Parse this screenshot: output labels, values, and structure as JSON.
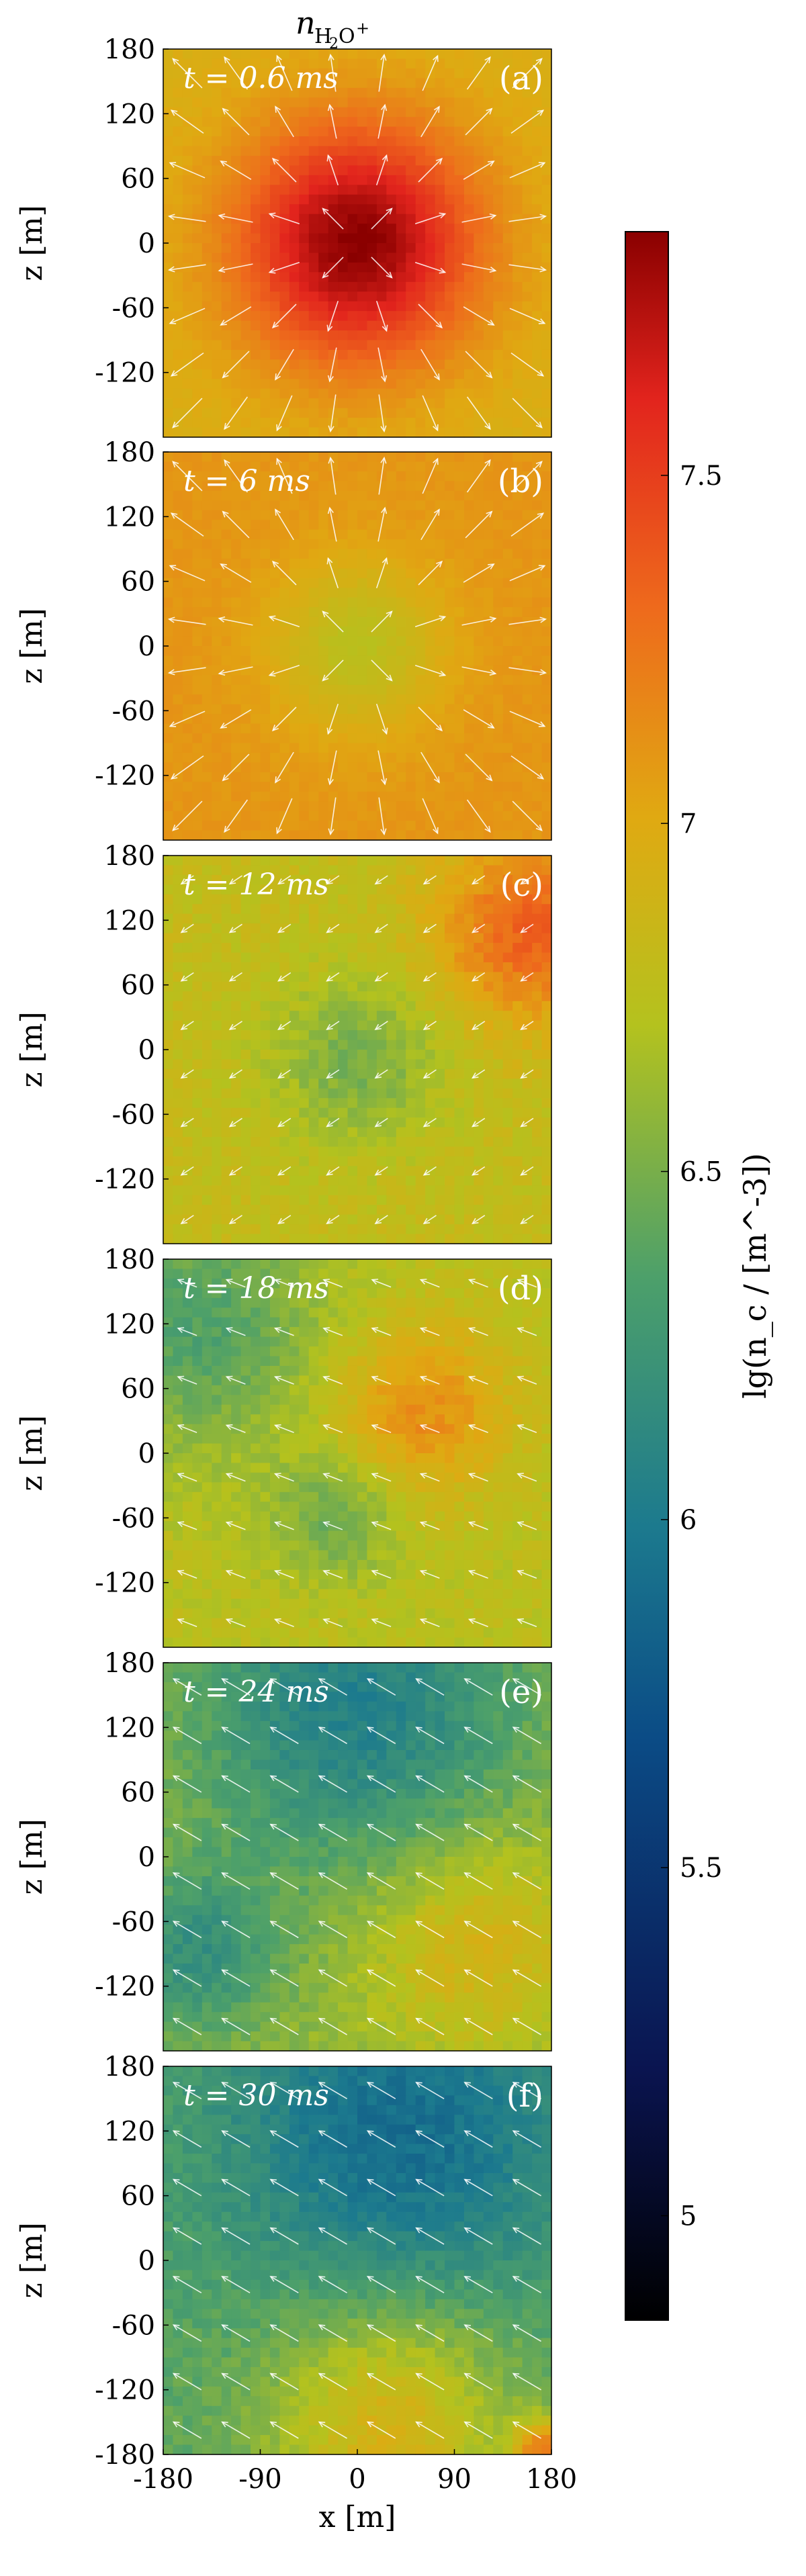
{
  "chart_data": {
    "type": "heatmap",
    "title": "n_{H2O+}",
    "title_main": "n",
    "title_sub": "H",
    "title_sub2": "2",
    "title_sub3": "O",
    "title_sup": "+",
    "xlabel": "x [m]",
    "ylabel": "z [m]",
    "x_range": [
      -180,
      180
    ],
    "z_range": [
      -180,
      180
    ],
    "x_ticks": [
      "-180",
      "-90",
      "0",
      "90",
      "180"
    ],
    "z_ticks": [
      "180",
      "120",
      "60",
      "0",
      "-60",
      "-120",
      "-180"
    ],
    "colorbar": {
      "label": "lg(n_c / [m^-3])",
      "range": [
        4.85,
        7.85
      ],
      "ticks": [
        "7.5",
        "7",
        "6.5",
        "6",
        "5.5",
        "5"
      ],
      "colormap": "jet-like (black → blue → cyan → green → yellow → orange → red → dark red)"
    },
    "panels": [
      {
        "id": "(a)",
        "time_label": "t = 0.6 ms",
        "t_ms": 0.6,
        "background_lg": 6.95,
        "blobs": [
          {
            "x": 0,
            "z": 0,
            "sigma": 80,
            "amp": 0.9
          }
        ],
        "flow": "radial-out"
      },
      {
        "id": "(b)",
        "time_label": "t = 6 ms",
        "t_ms": 6,
        "background_lg": 7.1,
        "blobs": [
          {
            "x": 0,
            "z": 0,
            "sigma": 55,
            "amp": -0.35
          }
        ],
        "flow": "radial-out"
      },
      {
        "id": "(c)",
        "time_label": "t = 12 ms",
        "t_ms": 12,
        "background_lg": 6.8,
        "blobs": [
          {
            "x": 0,
            "z": -10,
            "sigma": 55,
            "amp": -0.3
          },
          {
            "x": 160,
            "z": 110,
            "sigma": 60,
            "amp": 0.55
          }
        ],
        "flow": "weak"
      },
      {
        "id": "(d)",
        "time_label": "t = 18 ms",
        "t_ms": 18,
        "background_lg": 6.75,
        "blobs": [
          {
            "x": -150,
            "z": 120,
            "sigma": 80,
            "amp": -0.4
          },
          {
            "x": 60,
            "z": 40,
            "sigma": 55,
            "amp": 0.4
          },
          {
            "x": -20,
            "z": -60,
            "sigma": 40,
            "amp": -0.3
          }
        ],
        "flow": "weak-left"
      },
      {
        "id": "(e)",
        "time_label": "t = 24 ms",
        "t_ms": 24,
        "background_lg": 6.6,
        "blobs": [
          {
            "x": 0,
            "z": 140,
            "sigma": 110,
            "amp": -0.55
          },
          {
            "x": -150,
            "z": -90,
            "sigma": 55,
            "amp": -0.4
          },
          {
            "x": 110,
            "z": -80,
            "sigma": 70,
            "amp": 0.35
          }
        ],
        "flow": "left-up"
      },
      {
        "id": "(f)",
        "time_label": "t = 30 ms",
        "t_ms": 30,
        "background_lg": 6.4,
        "blobs": [
          {
            "x": 40,
            "z": 120,
            "sigma": 120,
            "amp": -0.5
          },
          {
            "x": 30,
            "z": -150,
            "sigma": 80,
            "amp": 0.55
          },
          {
            "x": 175,
            "z": -175,
            "sigma": 20,
            "amp": 0.8
          }
        ],
        "flow": "left-up"
      }
    ]
  }
}
